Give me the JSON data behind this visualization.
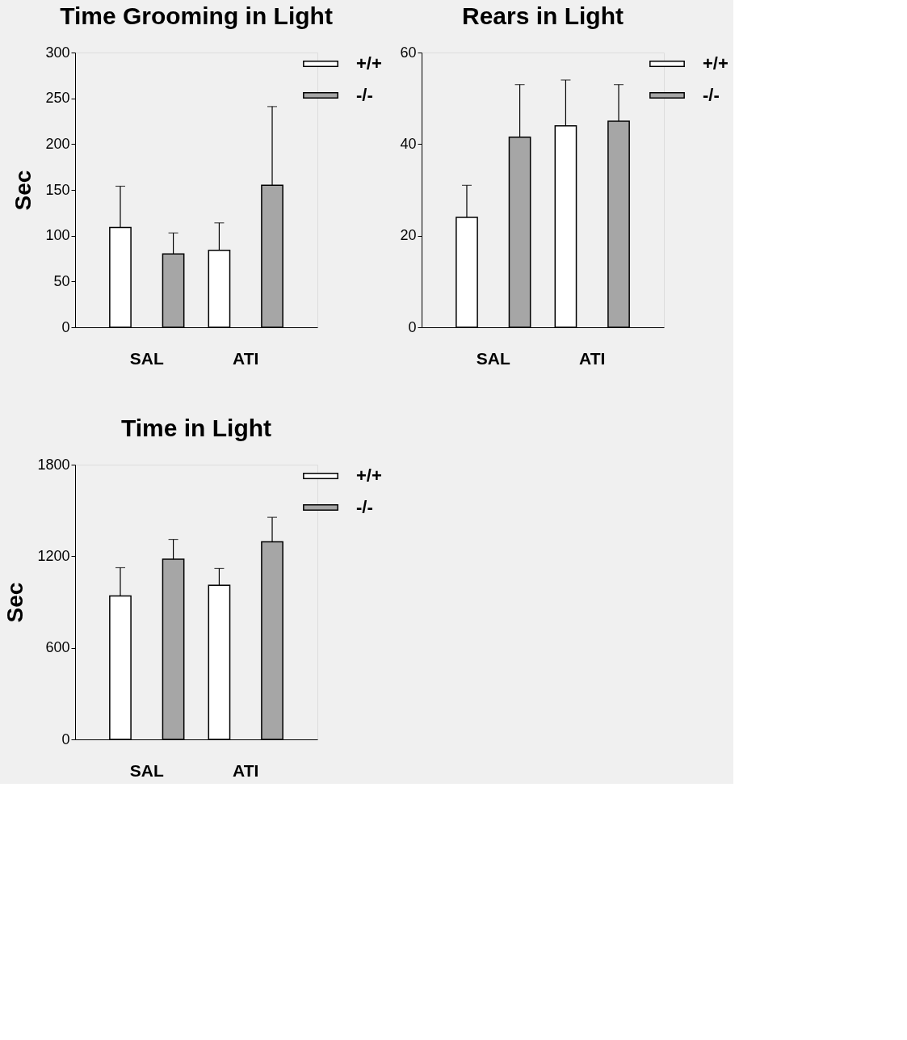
{
  "chart_data": [
    {
      "type": "bar",
      "title": "Time Grooming in Light",
      "ylabel": "Sec",
      "categories": [
        "SAL",
        "ATI"
      ],
      "ylim": [
        0,
        300
      ],
      "yticks": [
        0,
        50,
        100,
        150,
        200,
        250,
        300
      ],
      "grid": false,
      "legend": "top right",
      "series": [
        {
          "name": "+/+",
          "color": "#ffffff",
          "values": [
            109,
            84
          ],
          "errors": [
            [
              109,
              154
            ],
            [
              84,
              114
            ]
          ]
        },
        {
          "name": "-/-",
          "color": "#a6a6a6",
          "values": [
            80,
            155
          ],
          "errors": [
            [
              80,
              103
            ],
            [
              155,
              241
            ]
          ]
        }
      ]
    },
    {
      "type": "bar",
      "title": "Rears in Light",
      "categories": [
        "SAL",
        "ATI"
      ],
      "ylim": [
        0,
        60
      ],
      "yticks": [
        0,
        20,
        40,
        60
      ],
      "grid": false,
      "legend": "top right",
      "series": [
        {
          "name": "+/+",
          "color": "#ffffff",
          "values": [
            24,
            44
          ],
          "errors": [
            [
              24,
              31
            ],
            [
              44,
              54
            ]
          ]
        },
        {
          "name": "-/-",
          "color": "#a6a6a6",
          "values": [
            41.5,
            45
          ],
          "errors": [
            [
              41.5,
              53
            ],
            [
              45,
              53
            ]
          ]
        }
      ]
    },
    {
      "type": "bar",
      "title": "Time in Light",
      "ylabel": "Sec",
      "categories": [
        "SAL",
        "ATI"
      ],
      "ylim": [
        0,
        1800
      ],
      "yticks": [
        0,
        600,
        1200,
        1800
      ],
      "grid": false,
      "legend": "top right",
      "series": [
        {
          "name": "+/+",
          "color": "#ffffff",
          "values": [
            940,
            1010
          ],
          "errors": [
            [
              940,
              1125
            ],
            [
              1010,
              1120
            ]
          ]
        },
        {
          "name": "-/-",
          "color": "#a6a6a6",
          "values": [
            1180,
            1295
          ],
          "errors": [
            [
              1180,
              1310
            ],
            [
              1295,
              1455
            ]
          ]
        }
      ]
    }
  ]
}
